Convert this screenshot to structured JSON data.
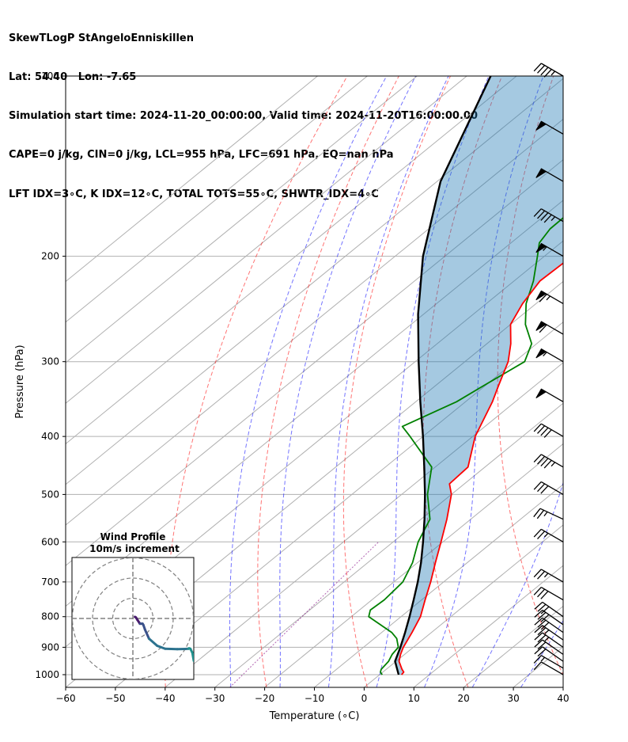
{
  "header": {
    "line1": "SkewTLogP StAngeloEnniskillen",
    "line2": "Lat: 54.40   Lon: -7.65",
    "line3": "Simulation start time: 2024-11-20_00:00:00, Valid time: 2024-11-20T16:00:00.00",
    "line4": "CAPE=0 j/kg, CIN=0 j/kg, LCL=955 hPa, LFC=691 hPa, EQ=nan hPa",
    "line5": "LFT IDX=3∘C, K IDX=12∘C, TOTAL TOTS=55∘C, SHWTR_IDX=4∘C"
  },
  "chart_data": {
    "type": "skewt-logp",
    "title": "SkewTLogP StAngeloEnniskillen",
    "xlabel": "Temperature (∘C)",
    "ylabel": "Pressure (hPa)",
    "xlim": [
      -60,
      40
    ],
    "ylim": [
      1050,
      100
    ],
    "xticks": [
      -60,
      -50,
      -40,
      -30,
      -20,
      -10,
      0,
      10,
      20,
      30,
      40
    ],
    "xtick_labels": [
      "−60",
      "−50",
      "−40",
      "−30",
      "−20",
      "−10",
      "0",
      "10",
      "20",
      "30",
      "40"
    ],
    "yticks": [
      1000,
      900,
      800,
      700,
      600,
      500,
      400,
      300,
      200,
      100
    ],
    "ytick_labels": [
      "1000",
      "900",
      "800",
      "700",
      "600",
      "500",
      "400",
      "300",
      "200",
      "100"
    ],
    "temperature": {
      "color": "#ff0000",
      "p": [
        1000,
        990,
        980,
        950,
        925,
        900,
        850,
        800,
        750,
        700,
        650,
        600,
        550,
        500,
        480,
        450,
        400,
        350,
        330,
        300,
        280,
        260,
        240,
        220,
        200,
        180,
        160,
        140,
        120,
        100
      ],
      "t": [
        4.4,
        4.2,
        3.2,
        0.6,
        -0.8,
        -2.0,
        -3.9,
        -6.1,
        -9.3,
        -12.6,
        -16.4,
        -20.4,
        -24.8,
        -30.0,
        -33.0,
        -33.4,
        -39.5,
        -44.6,
        -47.2,
        -51.3,
        -55.2,
        -60.0,
        -62.7,
        -64.8,
        -64.4,
        -63.8,
        -63.6,
        -64.8,
        -66.1,
        -67.3
      ]
    },
    "dewpoint": {
      "color": "#008000",
      "p": [
        1000,
        990,
        980,
        950,
        925,
        900,
        870,
        850,
        800,
        780,
        750,
        700,
        650,
        600,
        550,
        500,
        450,
        400,
        385,
        350,
        330,
        300,
        280,
        260,
        240,
        220,
        200,
        190,
        180,
        160,
        140,
        120,
        100
      ],
      "t": [
        0.5,
        -0.5,
        -1.0,
        -1.5,
        -2.5,
        -3.0,
        -5.5,
        -8.0,
        -16.5,
        -17.8,
        -17.5,
        -18.2,
        -21.0,
        -25.0,
        -28.2,
        -34.8,
        -40.7,
        -52.6,
        -56.6,
        -51.8,
        -50.4,
        -48.0,
        -51.0,
        -57.0,
        -62.0,
        -66.1,
        -71.4,
        -74.3,
        -75.6,
        -75.8,
        -76.1,
        -76.5,
        -76.9
      ]
    },
    "parcel_profile": {
      "color": "#000000",
      "p": [
        1000,
        950,
        900,
        850,
        800,
        750,
        700,
        650,
        600,
        550,
        500,
        450,
        400,
        350,
        300,
        250,
        200,
        150,
        100
      ],
      "t": [
        3.8,
        -0.2,
        -2.6,
        -5.3,
        -8.3,
        -11.6,
        -15.2,
        -19.3,
        -24.0,
        -29.3,
        -35.3,
        -42.2,
        -50.0,
        -59.1,
        -69.3,
        -81.1,
        -94.4,
        -109.3,
        -125.2
      ]
    },
    "cape_cin_shading": {
      "color": "#1f77b4",
      "alpha": 0.4
    },
    "dry_adiabats_theta_K": [
      230,
      250,
      270,
      290,
      310,
      330,
      350,
      370,
      390,
      410,
      430,
      450
    ],
    "moist_adiabats_T0_C": [
      -30,
      -20,
      -10,
      0,
      10,
      20,
      30
    ],
    "mixing_ratio_lines_g_kg": [
      0.4,
      1,
      2,
      4,
      7,
      10,
      16,
      24,
      32
    ],
    "wind_barbs": {
      "p": [
        1000,
        975,
        950,
        925,
        900,
        875,
        850,
        825,
        800,
        750,
        700,
        600,
        550,
        500,
        450,
        400,
        350,
        300,
        270,
        240,
        200,
        175,
        150,
        125,
        100
      ],
      "speed_kt": [
        12,
        16,
        20,
        24,
        26,
        28,
        30,
        32,
        32,
        30,
        27,
        25,
        25,
        30,
        45,
        40,
        50,
        55,
        60,
        65,
        55,
        45,
        50,
        50,
        45
      ],
      "direction_deg": [
        300,
        300,
        305,
        305,
        305,
        305,
        305,
        305,
        305,
        300,
        300,
        300,
        295,
        300,
        300,
        300,
        300,
        300,
        300,
        300,
        300,
        300,
        300,
        300,
        300
      ]
    },
    "hodograph": {
      "title_line1": "Wind Profile",
      "title_line2": "10m/s increment",
      "rings_ms": [
        10,
        20,
        30
      ],
      "u_ms": [
        1.0,
        1.5,
        2.2,
        3.3,
        3.5,
        3.6,
        4.4,
        4.8,
        5.2,
        6.0,
        8.0,
        12.0,
        16.0,
        22.0,
        26.0,
        27.5,
        27.8,
        28.5,
        29.5,
        30.2
      ],
      "v_ms": [
        0.8,
        0.5,
        -0.6,
        -2.3,
        -2.6,
        -2.6,
        -2.6,
        -2.6,
        -3.2,
        -5.5,
        -10.0,
        -13.5,
        -15.0,
        -15.2,
        -15.1,
        -15.0,
        -14.8,
        -15.0,
        -17.0,
        -21.0
      ],
      "colormap": [
        "#481a6c",
        "#3b528b",
        "#2c728e",
        "#21908d"
      ]
    }
  }
}
